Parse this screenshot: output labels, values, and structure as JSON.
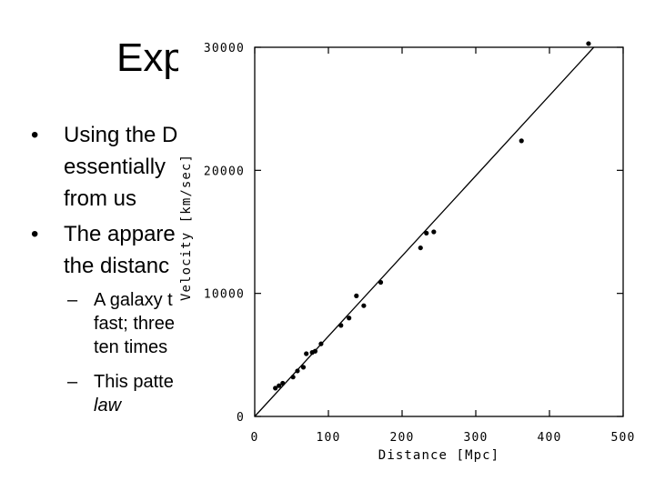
{
  "slide": {
    "title_fragment": "Exp",
    "bullets": [
      {
        "lines": [
          "Using the D",
          "essentially",
          "from us"
        ],
        "marker": "•"
      },
      {
        "lines": [
          "The appare",
          "the distanc"
        ],
        "marker": "•"
      }
    ],
    "subbullets": [
      {
        "lines": [
          "A galaxy t",
          "fast; three",
          "ten times"
        ],
        "marker": "–"
      },
      {
        "lines": [
          "This patte",
          "law"
        ],
        "marker": "–",
        "italic_line_index": 1
      }
    ]
  },
  "chart_data": {
    "type": "scatter",
    "title": "",
    "xlabel": "Distance [Mpc]",
    "ylabel": "Velocity [km/sec]",
    "xlim": [
      0,
      500
    ],
    "ylim": [
      0,
      30000
    ],
    "x_ticks": [
      0,
      100,
      200,
      300,
      400,
      500
    ],
    "x_tick_labels": [
      "0",
      "100",
      "200",
      "300",
      "400",
      "500"
    ],
    "y_ticks": [
      0,
      10000,
      20000,
      30000
    ],
    "y_tick_labels": [
      "0",
      "10000",
      "20000",
      "30000"
    ],
    "grid": false,
    "legend": "none",
    "fit_line": {
      "slope": 65.2,
      "intercept": 0
    },
    "points": [
      {
        "x": 28,
        "y": 2300
      },
      {
        "x": 33,
        "y": 2500
      },
      {
        "x": 38,
        "y": 2700
      },
      {
        "x": 52,
        "y": 3200
      },
      {
        "x": 58,
        "y": 3700
      },
      {
        "x": 66,
        "y": 4000
      },
      {
        "x": 70,
        "y": 5100
      },
      {
        "x": 78,
        "y": 5200
      },
      {
        "x": 82,
        "y": 5300
      },
      {
        "x": 90,
        "y": 5900
      },
      {
        "x": 117,
        "y": 7400
      },
      {
        "x": 128,
        "y": 8000
      },
      {
        "x": 138,
        "y": 9800
      },
      {
        "x": 148,
        "y": 9000
      },
      {
        "x": 171,
        "y": 10900
      },
      {
        "x": 225,
        "y": 13700
      },
      {
        "x": 233,
        "y": 14900
      },
      {
        "x": 243,
        "y": 15000
      },
      {
        "x": 362,
        "y": 22400
      },
      {
        "x": 453,
        "y": 30300
      }
    ]
  }
}
